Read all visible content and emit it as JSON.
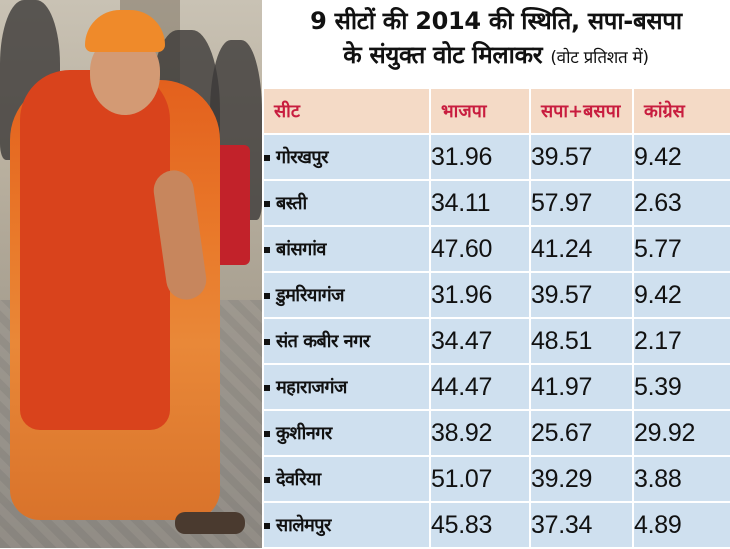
{
  "title": {
    "line1": "9 सीटों की 2014 की स्थिति, सपा-बसपा",
    "line2": "के संयुक्त वोट मिलाकर",
    "line2_note": "(वोट प्रतिशत में)"
  },
  "table": {
    "headers": [
      "सीट",
      "भाजपा",
      "सपा+बसपा",
      "कांग्रेस"
    ],
    "rows": [
      {
        "seat": "गोरखपुर",
        "bjp": "31.96",
        "sp_bsp": "39.57",
        "congress": "9.42"
      },
      {
        "seat": "बस्ती",
        "bjp": "34.11",
        "sp_bsp": "57.97",
        "congress": "2.63"
      },
      {
        "seat": "बांसगांव",
        "bjp": "47.60",
        "sp_bsp": "41.24",
        "congress": "5.77"
      },
      {
        "seat": "डुमरियागंज",
        "bjp": "31.96",
        "sp_bsp": "39.57",
        "congress": "9.42"
      },
      {
        "seat": "संत कबीर नगर",
        "bjp": "34.47",
        "sp_bsp": "48.51",
        "congress": "2.17"
      },
      {
        "seat": "महाराजगंज",
        "bjp": "44.47",
        "sp_bsp": "41.97",
        "congress": "5.39"
      },
      {
        "seat": "कुशीनगर",
        "bjp": "38.92",
        "sp_bsp": "25.67",
        "congress": "29.92"
      },
      {
        "seat": "देवरिया",
        "bjp": "51.07",
        "sp_bsp": "39.29",
        "congress": "3.88"
      },
      {
        "seat": "सालेमपुर",
        "bjp": "45.83",
        "sp_bsp": "37.34",
        "congress": "4.89"
      }
    ]
  },
  "colors": {
    "header_bg": "#f4dac6",
    "header_text": "#c81d3f",
    "row_bg": "#cfe0ef"
  },
  "photo": {
    "icon": "person-photo"
  }
}
